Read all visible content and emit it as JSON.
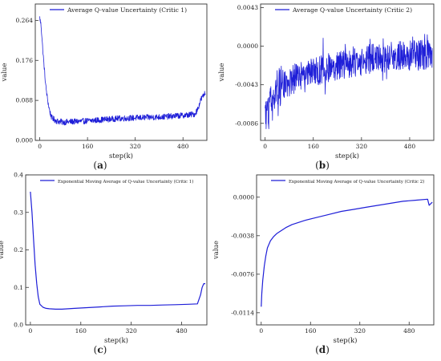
{
  "chart_data": [
    {
      "type": "line",
      "panel_label": "(a)",
      "legend": "Average Q-value Uncertainty (Critic 1)",
      "legend_position": "top",
      "xlabel": "step(k)",
      "ylabel": "value",
      "xlim": [
        -15,
        560
      ],
      "ylim": [
        0.0,
        0.3
      ],
      "xticks": [
        0,
        160,
        320,
        480
      ],
      "xtick_labels": [
        "0",
        "160",
        "320",
        "480"
      ],
      "yticks": [
        0.0,
        0.088,
        0.176,
        0.264
      ],
      "ytick_labels": [
        "0.000",
        "0.088",
        "0.176",
        "0.264"
      ],
      "grid": false,
      "color": "#1f1fd8",
      "noisy": true,
      "series": [
        {
          "x": [
            0,
            5,
            10,
            15,
            20,
            25,
            30,
            35,
            40,
            50,
            60,
            80,
            100,
            140,
            180,
            220,
            260,
            300,
            340,
            380,
            420,
            460,
            500,
            520,
            530,
            540,
            550,
            555
          ],
          "values": [
            0.27,
            0.25,
            0.2,
            0.16,
            0.12,
            0.095,
            0.075,
            0.06,
            0.05,
            0.045,
            0.042,
            0.04,
            0.041,
            0.042,
            0.044,
            0.046,
            0.048,
            0.049,
            0.05,
            0.051,
            0.052,
            0.054,
            0.056,
            0.058,
            0.07,
            0.09,
            0.1,
            0.105
          ]
        }
      ]
    },
    {
      "type": "line",
      "panel_label": "(b)",
      "legend": "Average Q-value Uncertainty (Critic 2)",
      "legend_position": "top",
      "xlabel": "step(k)",
      "ylabel": "value",
      "xlim": [
        -15,
        560
      ],
      "ylim": [
        -0.0105,
        0.0047
      ],
      "xticks": [
        0,
        160,
        320,
        480
      ],
      "xtick_labels": [
        "0",
        "160",
        "320",
        "480"
      ],
      "yticks": [
        -0.0086,
        -0.0043,
        0.0,
        0.0043
      ],
      "ytick_labels": [
        "-0.0086",
        "-0.0043",
        "0.0000",
        "0.0043"
      ],
      "grid": false,
      "color": "#1f1fd8",
      "noisy": true,
      "series": [
        {
          "x": [
            0,
            20,
            40,
            60,
            80,
            100,
            140,
            180,
            220,
            260,
            300,
            340,
            380,
            420,
            460,
            500,
            540,
            555
          ],
          "values": [
            -0.008,
            -0.0065,
            -0.0048,
            -0.0042,
            -0.004,
            -0.0036,
            -0.0031,
            -0.0027,
            -0.0023,
            -0.002,
            -0.0017,
            -0.0015,
            -0.0013,
            -0.0012,
            -0.0011,
            -0.001,
            -0.0009,
            -0.0009
          ]
        }
      ]
    },
    {
      "type": "line",
      "panel_label": "(c)",
      "legend": "Exponential Moving Average of Q-value Uncertainty (Critic 1)",
      "legend_position": "top",
      "xlabel": "step(k)",
      "ylabel": "value",
      "xlim": [
        -15,
        560
      ],
      "ylim": [
        0.0,
        0.4
      ],
      "xticks": [
        0,
        160,
        320,
        480
      ],
      "xtick_labels": [
        "0",
        "160",
        "320",
        "480"
      ],
      "yticks": [
        0.0,
        0.1,
        0.2,
        0.3,
        0.4
      ],
      "ytick_labels": [
        "0.0",
        "0.1",
        "0.2",
        "0.3",
        "0.4"
      ],
      "grid": false,
      "color": "#1f1fd8",
      "noisy": false,
      "series": [
        {
          "x": [
            0,
            5,
            10,
            15,
            20,
            25,
            30,
            40,
            50,
            60,
            80,
            100,
            140,
            180,
            220,
            260,
            300,
            340,
            380,
            420,
            460,
            500,
            530,
            540,
            545,
            550,
            555
          ],
          "values": [
            0.355,
            0.3,
            0.23,
            0.16,
            0.11,
            0.075,
            0.055,
            0.047,
            0.044,
            0.043,
            0.042,
            0.042,
            0.044,
            0.046,
            0.048,
            0.05,
            0.051,
            0.052,
            0.052,
            0.053,
            0.054,
            0.055,
            0.056,
            0.08,
            0.1,
            0.11,
            0.11
          ]
        }
      ]
    },
    {
      "type": "line",
      "panel_label": "(d)",
      "legend": "Exponential Moving Average of Q-value Uncertainty (Critic 2)",
      "legend_position": "top",
      "xlabel": "step(k)",
      "ylabel": "value",
      "xlim": [
        -15,
        560
      ],
      "ylim": [
        -0.0126,
        0.0022
      ],
      "xticks": [
        0,
        160,
        320,
        480
      ],
      "xtick_labels": [
        "0",
        "160",
        "320",
        "480"
      ],
      "yticks": [
        -0.0114,
        -0.0076,
        -0.0038,
        0.0
      ],
      "ytick_labels": [
        "-0.0114",
        "-0.0076",
        "-0.0038",
        "0.0000"
      ],
      "grid": false,
      "color": "#1f1fd8",
      "noisy": false,
      "series": [
        {
          "x": [
            0,
            2,
            5,
            10,
            15,
            20,
            30,
            40,
            50,
            60,
            80,
            100,
            140,
            180,
            220,
            260,
            300,
            340,
            380,
            420,
            460,
            500,
            540,
            545,
            555
          ],
          "values": [
            -0.0108,
            -0.0095,
            -0.0082,
            -0.0068,
            -0.0058,
            -0.005,
            -0.0043,
            -0.0039,
            -0.0036,
            -0.0034,
            -0.003,
            -0.0027,
            -0.0023,
            -0.002,
            -0.0017,
            -0.0014,
            -0.0012,
            -0.001,
            -0.0008,
            -0.0006,
            -0.0004,
            -0.0003,
            -0.0002,
            -0.0008,
            -0.0005
          ]
        }
      ]
    }
  ]
}
